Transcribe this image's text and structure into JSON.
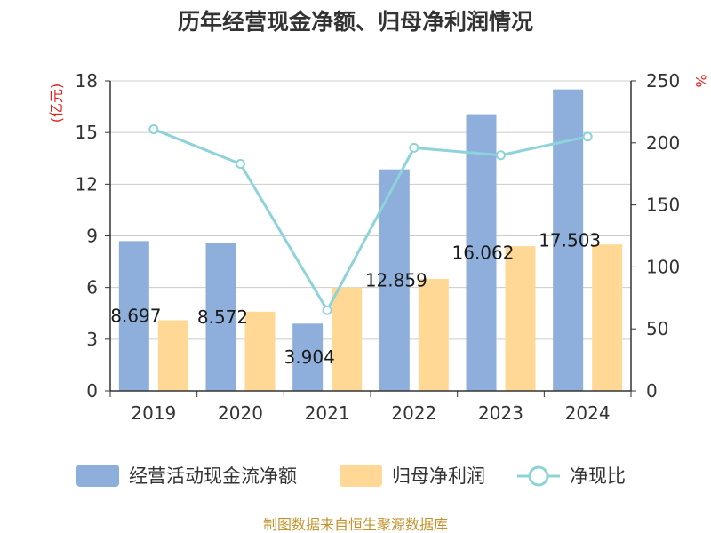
{
  "chart_data": {
    "type": "bar+line",
    "title": "历年经营现金净额、归母净利润情况",
    "categories": [
      "2019",
      "2020",
      "2021",
      "2022",
      "2023",
      "2024"
    ],
    "series": [
      {
        "name": "经营活动现金流净额",
        "type": "bar",
        "axis": "left",
        "color": "#8eaedb",
        "values": [
          8.697,
          8.572,
          3.904,
          12.859,
          16.062,
          17.503
        ]
      },
      {
        "name": "归母净利润",
        "type": "bar",
        "axis": "left",
        "color": "#ffd896",
        "values": [
          4.1,
          4.6,
          6.0,
          6.5,
          8.4,
          8.5
        ]
      },
      {
        "name": "净现比",
        "type": "line",
        "axis": "right",
        "color": "#8dd3d9",
        "values": [
          211,
          183,
          65,
          196,
          190,
          205
        ]
      }
    ],
    "data_labels": [
      "8.697",
      "8.572",
      "3.904",
      "12.859",
      "16.062",
      "17.503"
    ],
    "y_left": {
      "label": "(亿元)",
      "ticks": [
        "0",
        "3",
        "6",
        "9",
        "12",
        "15",
        "18"
      ],
      "ylim": [
        0,
        18
      ]
    },
    "y_right": {
      "label": "%",
      "ticks": [
        "0",
        "50",
        "100",
        "150",
        "200",
        "250"
      ],
      "ylim": [
        0,
        250
      ]
    },
    "grid": true,
    "legend_position": "bottom",
    "source": "制图数据来自恒生聚源数据库",
    "colors": {
      "title": "#333333",
      "axis_unit": "#e0201a",
      "source": "#c2922b",
      "grid": "#cccccc"
    }
  }
}
